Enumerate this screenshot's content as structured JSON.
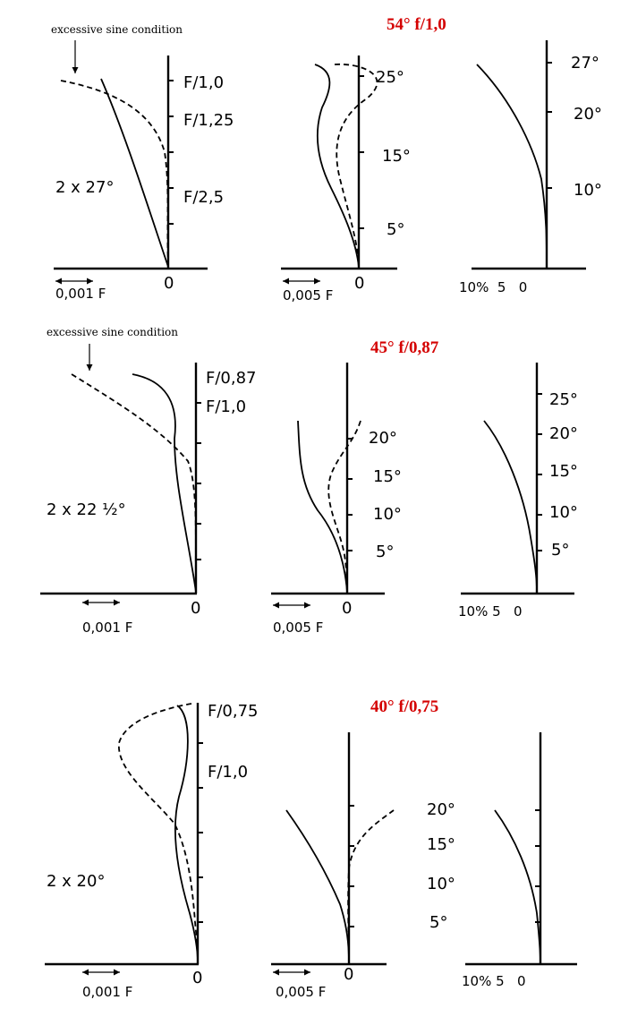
{
  "chart_data": [
    {
      "title": "54°  f/1,0",
      "note": "excessive sine condition",
      "panels": [
        {
          "type": "line",
          "label": "2 x 27°",
          "xlabel": "0,001 F",
          "origin": "0",
          "right_labels": [
            "F/1,0",
            "F/1,25",
            "F/2,5"
          ],
          "series": [
            {
              "style": "solid",
              "points": [
                [
                  -0.003,
                  27
                ],
                [
                  -0.0025,
                  24
                ],
                [
                  -0.0017,
                  18
                ],
                [
                  -0.0008,
                  9
                ],
                [
                  0,
                  0
                ]
              ]
            },
            {
              "style": "dashed",
              "points": [
                [
                  -0.0045,
                  26
                ],
                [
                  -0.0025,
                  24
                ],
                [
                  -0.0005,
                  18
                ],
                [
                  0.0001,
                  12
                ],
                [
                  0,
                  0
                ]
              ]
            }
          ]
        },
        {
          "type": "line",
          "xlabel": "0,005 F",
          "origin": "0",
          "ticks": [
            "5°",
            "15°",
            "25°"
          ],
          "series": [
            {
              "style": "solid",
              "points": [
                [
                  -0.01,
                  27
                ],
                [
                  -0.012,
                  24
                ],
                [
                  -0.018,
                  18
                ],
                [
                  -0.012,
                  9
                ],
                [
                  0,
                  0
                ]
              ]
            },
            {
              "style": "dashed",
              "points": [
                [
                  -0.01,
                  27
                ],
                [
                  0.012,
                  25
                ],
                [
                  -0.006,
                  20
                ],
                [
                  -0.005,
                  12
                ],
                [
                  0,
                  0
                ]
              ]
            }
          ]
        },
        {
          "type": "line",
          "xlabel": "10%  5   0",
          "origin": "0",
          "ticks": [
            "10°",
            "20°",
            "27°"
          ],
          "series": [
            {
              "style": "solid",
              "points": [
                [
                  -11.0,
                  27
                ],
                [
                  -6.0,
                  20
                ],
                [
                  -2.0,
                  12
                ],
                [
                  -0.3,
                  5
                ],
                [
                  0,
                  0
                ]
              ]
            }
          ]
        }
      ]
    },
    {
      "title": "45°  f/0,87",
      "note": "excessive sine condition",
      "panels": [
        {
          "type": "line",
          "label": "2 x 22 ½°",
          "xlabel": "0,001 F",
          "origin": "0",
          "right_labels": [
            "F/0,87",
            "F/1,0"
          ],
          "series": [
            {
              "style": "solid",
              "points": [
                [
                  -0.0014,
                  22.5
                ],
                [
                  -0.0007,
                  20
                ],
                [
                  -0.0005,
                  13
                ],
                [
                  -0.0002,
                  6
                ],
                [
                  0,
                  0
                ]
              ]
            },
            {
              "style": "dashed",
              "points": [
                [
                  -0.003,
                  22.5
                ],
                [
                  -0.0015,
                  18
                ],
                [
                  -0.0003,
                  13
                ],
                [
                  0.0001,
                  8
                ],
                [
                  0,
                  0
                ]
              ]
            }
          ]
        },
        {
          "type": "line",
          "xlabel": "0,005 F",
          "origin": "0",
          "ticks": [
            "5°",
            "10°",
            "15°",
            "20°"
          ],
          "series": [
            {
              "style": "solid",
              "points": [
                [
                  -0.011,
                  22.5
                ],
                [
                  -0.009,
                  15
                ],
                [
                  -0.004,
                  8
                ],
                [
                  0,
                  0
                ]
              ]
            },
            {
              "style": "dashed",
              "points": [
                [
                  0.003,
                  22.5
                ],
                [
                  -0.002,
                  16
                ],
                [
                  -0.004,
                  10
                ],
                [
                  0,
                  0
                ]
              ]
            }
          ]
        },
        {
          "type": "line",
          "xlabel": "10% 5   0",
          "origin": "0",
          "ticks": [
            "5°",
            "10°",
            "15°",
            "20°",
            "25°"
          ],
          "series": [
            {
              "style": "solid",
              "points": [
                [
                  -8.0,
                  22.5
                ],
                [
                  -4.0,
                  16
                ],
                [
                  -1.0,
                  8
                ],
                [
                  0,
                  0
                ]
              ]
            }
          ]
        }
      ]
    },
    {
      "title": "40°  f/0,75",
      "note": "",
      "panels": [
        {
          "type": "line",
          "label": "2 x 20°",
          "xlabel": "0,001 F",
          "origin": "0",
          "right_labels": [
            "F/0,75",
            "F/1,0"
          ],
          "series": [
            {
              "style": "solid",
              "points": [
                [
                  -0.0005,
                  20
                ],
                [
                  -0.0004,
                  16
                ],
                [
                  -0.0008,
                  10
                ],
                [
                  -0.0003,
                  5
                ],
                [
                  0,
                  0
                ]
              ]
            },
            {
              "style": "dashed",
              "points": [
                [
                  -0.001,
                  20
                ],
                [
                  -0.0045,
                  17
                ],
                [
                  -0.0015,
                  11
                ],
                [
                  0,
                  0
                ]
              ]
            }
          ]
        },
        {
          "type": "line",
          "xlabel": "0,005 F",
          "origin": "0",
          "ticks": [],
          "series": [
            {
              "style": "solid",
              "points": [
                [
                  -0.015,
                  20
                ],
                [
                  -0.007,
                  12
                ],
                [
                  0,
                  0
                ]
              ]
            },
            {
              "style": "dashed",
              "points": [
                [
                  0.01,
                  20
                ],
                [
                  0.002,
                  14
                ],
                [
                  0,
                  0
                ]
              ]
            }
          ]
        },
        {
          "type": "line",
          "xlabel": "10% 5   0",
          "origin": "0",
          "ticks": [
            "5°",
            "10°",
            "15°",
            "20°"
          ],
          "series": [
            {
              "style": "solid",
              "points": [
                [
                  -7.0,
                  20
                ],
                [
                  -3.0,
                  13
                ],
                [
                  -0.5,
                  5
                ],
                [
                  0,
                  0
                ]
              ]
            }
          ]
        }
      ]
    }
  ]
}
